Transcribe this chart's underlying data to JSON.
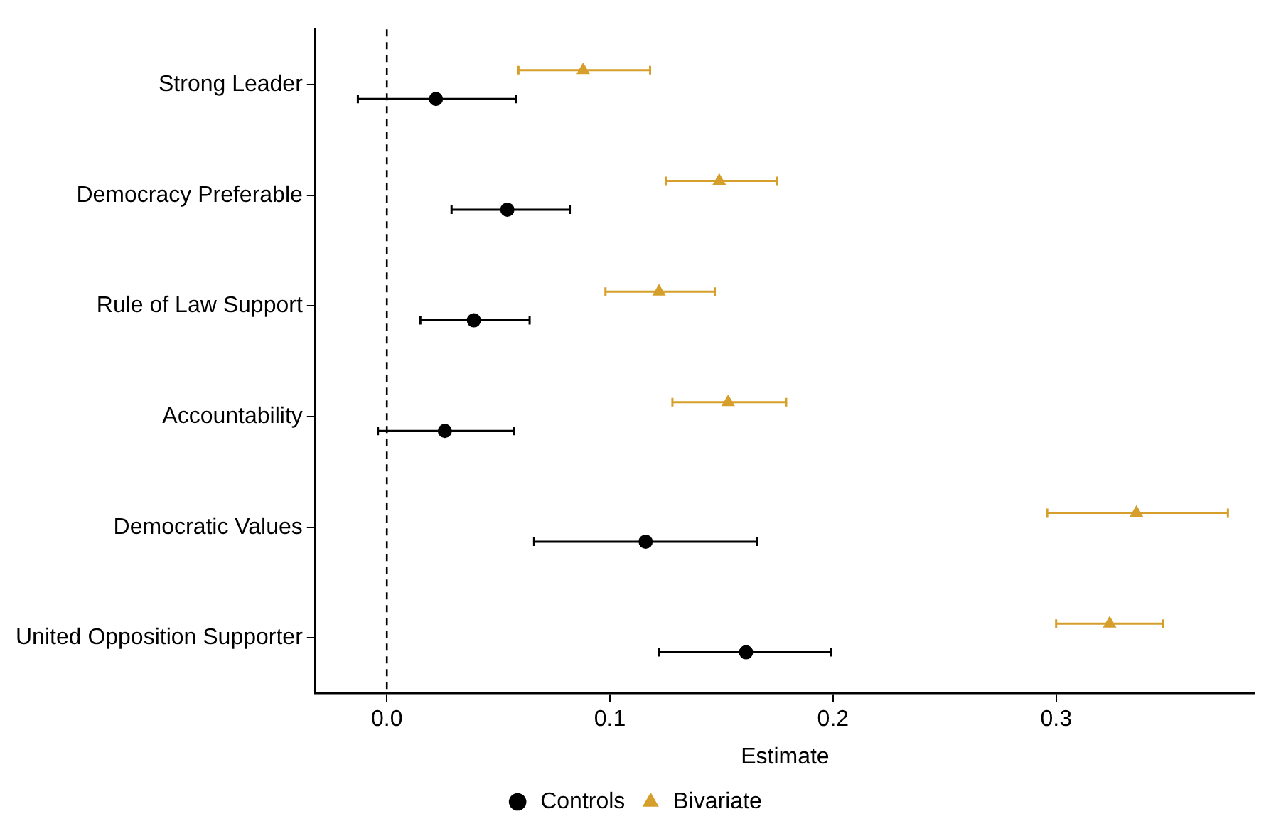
{
  "chart_data": {
    "type": "scatter",
    "orientation": "horizontal",
    "xlabel": "Estimate",
    "categories": [
      "Strong Leader",
      "Democracy Preferable",
      "Rule of Law Support",
      "Accountability",
      "Democratic Values",
      "United Opposition Supporter"
    ],
    "series": [
      {
        "name": "Controls",
        "color": "#000000",
        "marker": "circle",
        "values": [
          0.022,
          0.054,
          0.039,
          0.026,
          0.116,
          0.161
        ],
        "errors": [
          [
            -0.013,
            0.058
          ],
          [
            0.029,
            0.082
          ],
          [
            0.015,
            0.064
          ],
          [
            -0.004,
            0.057
          ],
          [
            0.066,
            0.166
          ],
          [
            0.122,
            0.199
          ]
        ]
      },
      {
        "name": "Bivariate",
        "color": "#d69e2a",
        "marker": "triangle",
        "values": [
          0.088,
          0.149,
          0.122,
          0.153,
          0.336,
          0.324
        ],
        "errors": [
          [
            0.059,
            0.118
          ],
          [
            0.125,
            0.175
          ],
          [
            0.098,
            0.147
          ],
          [
            0.128,
            0.179
          ],
          [
            0.296,
            0.377
          ],
          [
            0.3,
            0.348
          ]
        ]
      }
    ],
    "xlim": [
      -0.032,
      0.389
    ],
    "xticks": [
      {
        "value": 0,
        "label": "0.0"
      },
      0.1,
      0.2,
      0.3
    ],
    "ref_lines": [
      {
        "axis": "x",
        "value": 0,
        "line_style": "dashed",
        "color": "#000000"
      }
    ],
    "grid": false,
    "legend": "bottom"
  }
}
